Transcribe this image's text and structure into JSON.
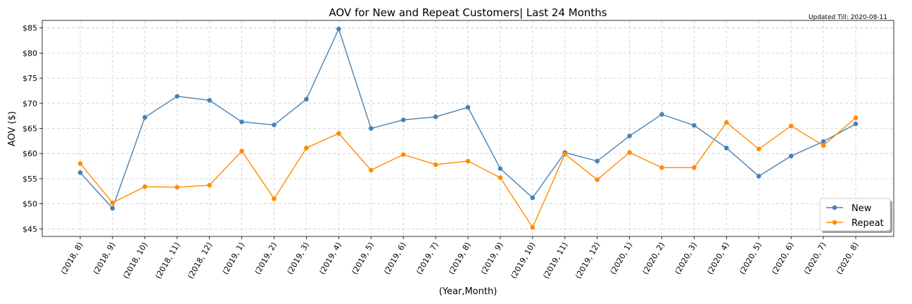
{
  "chart_data": {
    "type": "line",
    "title": "AOV for New and Repeat Customers| Last 24 Months",
    "note": "Updated Till: 2020-08-11",
    "xlabel": "(Year,Month)",
    "ylabel": "AOV ($)",
    "ylim": [
      43.5,
      86.5
    ],
    "yticks": [
      45,
      50,
      55,
      60,
      65,
      70,
      75,
      80,
      85
    ],
    "ytick_labels": [
      "$45",
      "$50",
      "$55",
      "$60",
      "$65",
      "$70",
      "$75",
      "$80",
      "$85"
    ],
    "grid": true,
    "legend_position": "bottom-right",
    "categories": [
      "(2018, 8)",
      "(2018, 9)",
      "(2018, 10)",
      "(2018, 11)",
      "(2018, 12)",
      "(2019, 1)",
      "(2019, 2)",
      "(2019, 3)",
      "(2019, 4)",
      "(2019, 5)",
      "(2019, 6)",
      "(2019, 7)",
      "(2019, 8)",
      "(2019, 9)",
      "(2019, 10)",
      "(2019, 11)",
      "(2019, 12)",
      "(2020, 1)",
      "(2020, 2)",
      "(2020, 3)",
      "(2020, 4)",
      "(2020, 5)",
      "(2020, 6)",
      "(2020, 7)",
      "(2020, 8)"
    ],
    "series": [
      {
        "name": "New",
        "color": "#4682b4",
        "values": [
          56.2,
          49.1,
          67.2,
          71.4,
          70.6,
          66.3,
          65.7,
          70.8,
          84.8,
          65.0,
          66.7,
          67.3,
          69.2,
          57.0,
          51.2,
          60.2,
          58.5,
          63.5,
          67.8,
          65.6,
          61.1,
          55.5,
          59.5,
          62.4,
          65.9
        ]
      },
      {
        "name": "Repeat",
        "color": "#ff8c00",
        "values": [
          58.0,
          50.2,
          53.4,
          53.3,
          53.7,
          60.5,
          51.0,
          61.1,
          64.0,
          56.7,
          59.8,
          57.8,
          58.5,
          55.2,
          45.3,
          59.9,
          54.8,
          60.2,
          57.2,
          57.2,
          66.2,
          60.9,
          65.5,
          61.6,
          67.1
        ]
      }
    ]
  }
}
